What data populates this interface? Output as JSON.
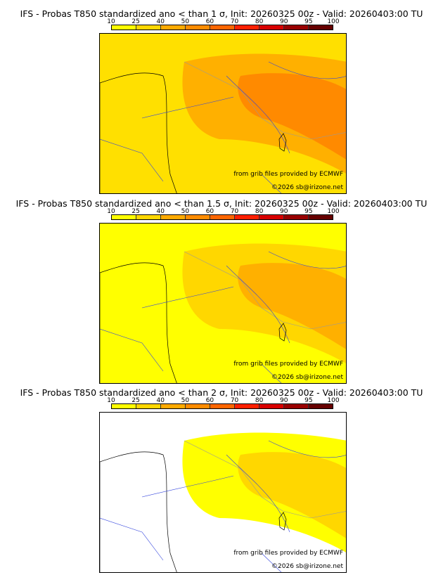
{
  "colorbar": {
    "ticks": [
      "10",
      "25",
      "40",
      "50",
      "60",
      "70",
      "80",
      "90",
      "95",
      "100"
    ],
    "colors": [
      "#ffff00",
      "#ffd700",
      "#ffaa00",
      "#ff8c00",
      "#ff6600",
      "#ff2000",
      "#d80000",
      "#990000",
      "#660000"
    ]
  },
  "panels": [
    {
      "title": "IFS - Probas T850  standardized ano < than 1 σ, Init: 20260325 00z - Valid: 20260403:00 TU",
      "base": "#ffe000",
      "mid": "#ffb000",
      "high": "#ff8a00"
    },
    {
      "title": "IFS - Probas T850  standardized ano < than 1.5 σ, Init: 20260325 00z - Valid: 20260403:00 TU",
      "base": "#ffff00",
      "mid": "#ffd700",
      "high": "#ffb000"
    },
    {
      "title": "IFS - Probas T850  standardized ano < than 2 σ, Init: 20260325 00z - Valid: 20260403:00 TU",
      "base": "#ffffff",
      "mid": "#ffff00",
      "high": "#ffd700"
    }
  ],
  "credits": {
    "source": "from grib files provided by ECMWF",
    "copyright": "©2026 sb@irizone.net"
  }
}
